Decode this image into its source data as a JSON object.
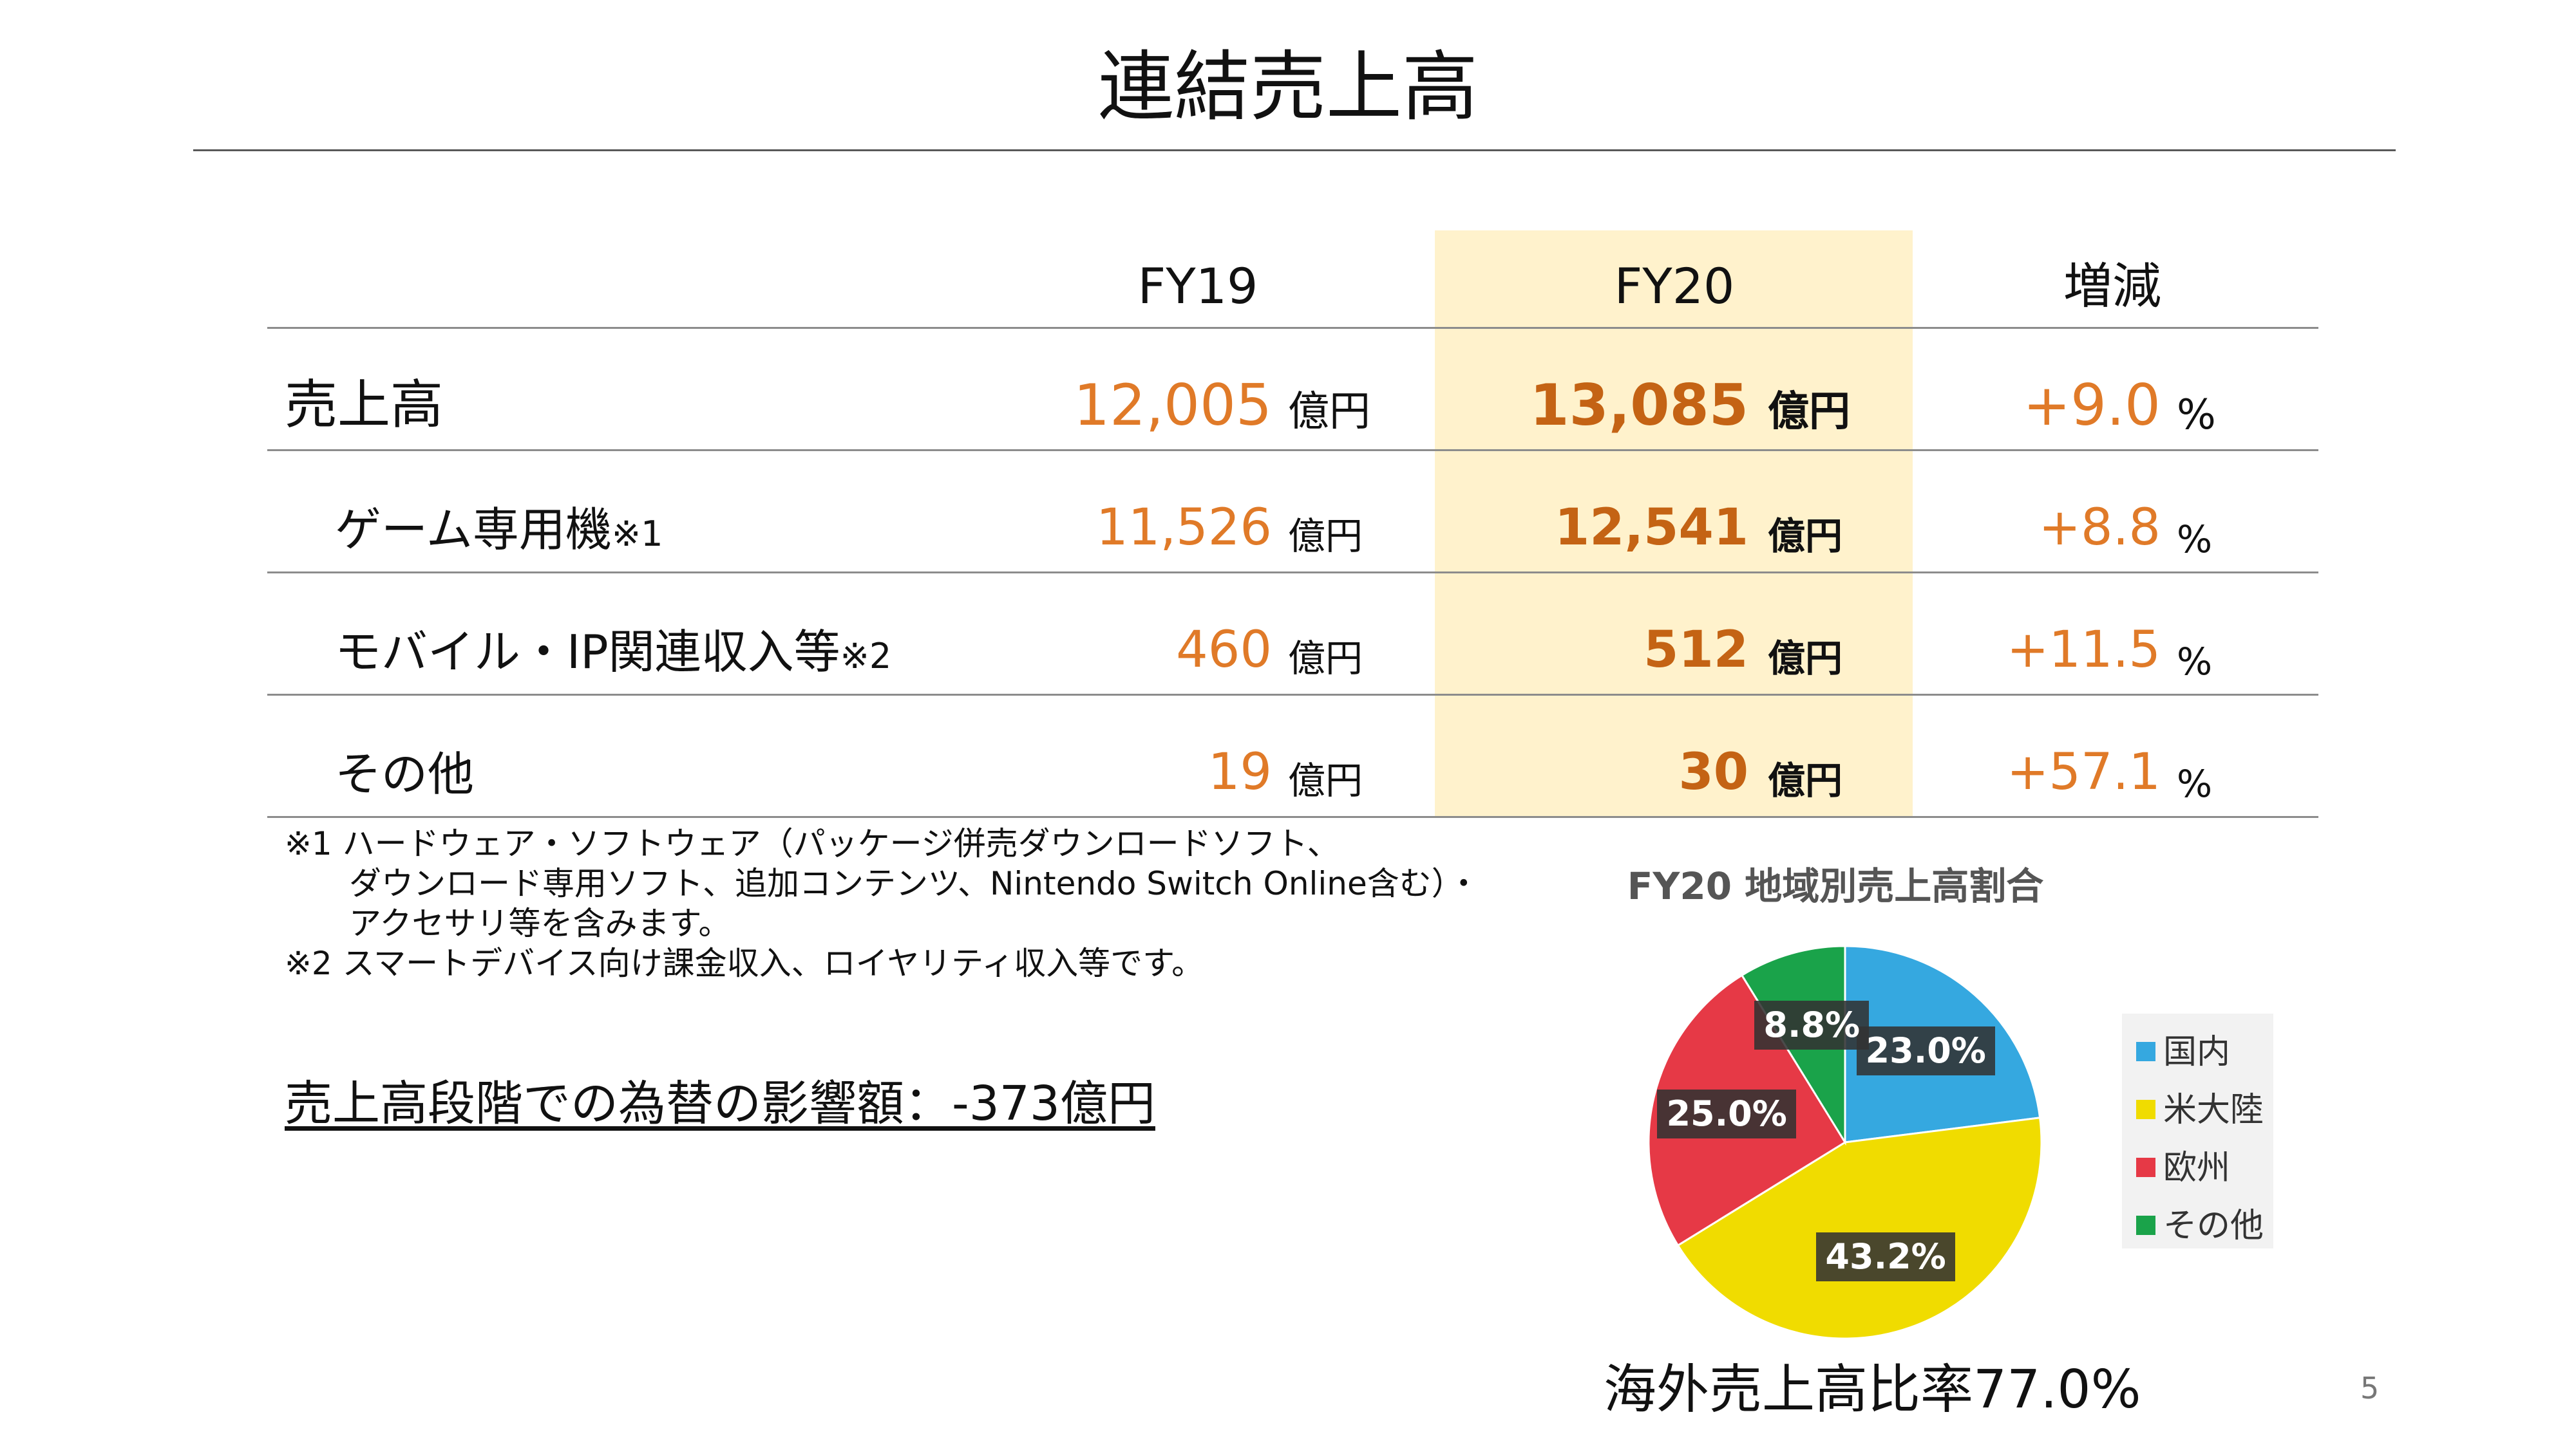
{
  "title": "連結売上高",
  "table": {
    "headers": {
      "fy19": "FY19",
      "fy20": "FY20",
      "change": "増減"
    },
    "rows": [
      {
        "label": "売上高",
        "note": "",
        "fy19": "12,005",
        "fy19_unit": "億円",
        "fy20": "13,085",
        "fy20_unit": "億円",
        "change": "+9.0",
        "change_unit": "%"
      },
      {
        "label": "ゲーム専用機",
        "note": "※1",
        "fy19": "11,526",
        "fy19_unit": "億円",
        "fy20": "12,541",
        "fy20_unit": "億円",
        "change": "+8.8",
        "change_unit": "%"
      },
      {
        "label": "モバイル・IP関連収入等",
        "note": "※2",
        "fy19": "460",
        "fy19_unit": "億円",
        "fy20": "512",
        "fy20_unit": "億円",
        "change": "+11.5",
        "change_unit": "%"
      },
      {
        "label": "その他",
        "note": "",
        "fy19": "19",
        "fy19_unit": "億円",
        "fy20": "30",
        "fy20_unit": "億円",
        "change": "+57.1",
        "change_unit": "%"
      }
    ]
  },
  "notes": [
    "※1 ハードウェア・ソフトウェア（パッケージ併売ダウンロードソフト、",
    "ダウンロード専用ソフト、追加コンテンツ、Nintendo Switch Online含む）・",
    "アクセサリ等を含みます。",
    "※2 スマートデバイス向け課金収入、ロイヤリティ収入等です。"
  ],
  "fx_impact": "売上高段階での為替の影響額：-373億円",
  "chart_data": {
    "type": "pie",
    "title": "FY20 地域別売上高割合",
    "slices": [
      {
        "name": "国内",
        "value": 23.0,
        "label": "23.0%",
        "color": "#35a8e0"
      },
      {
        "name": "米大陸",
        "value": 43.2,
        "label": "43.2%",
        "color": "#f0dc00"
      },
      {
        "name": "欧州",
        "value": 25.0,
        "label": "25.0%",
        "color": "#e63946"
      },
      {
        "name": "その他",
        "value": 8.8,
        "label": "8.8%",
        "color": "#1aa34a"
      }
    ],
    "legend_position": "right"
  },
  "overseas_ratio": "海外売上高比率77.0%",
  "page_number": "5"
}
